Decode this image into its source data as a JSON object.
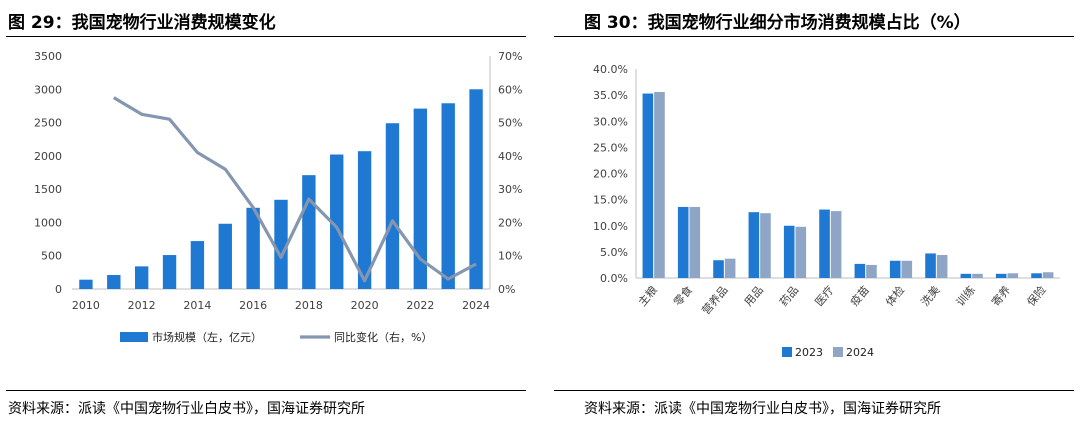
{
  "left": {
    "title": "图 29：我国宠物行业消费规模变化",
    "source": "资料来源：派读《中国宠物行业白皮书》，国海证券研究所"
  },
  "right": {
    "title": "图 30：我国宠物行业细分市场消费规模占比（%）",
    "source": "资料来源：派读《中国宠物行业白皮书》，国海证券研究所"
  },
  "chart_data": [
    {
      "type": "bar+line",
      "x": [
        2010,
        2011,
        2012,
        2013,
        2014,
        2015,
        2016,
        2017,
        2018,
        2019,
        2020,
        2021,
        2022,
        2023,
        2024
      ],
      "x_tick_labels": [
        "2010",
        "2012",
        "2014",
        "2016",
        "2018",
        "2020",
        "2022",
        "2024"
      ],
      "series": [
        {
          "name": "市场规模（左，亿元）",
          "type": "bar",
          "axis": "left",
          "color": "#1f78d1",
          "values": [
            140,
            210,
            340,
            510,
            720,
            980,
            1220,
            1340,
            1710,
            2020,
            2070,
            2490,
            2710,
            2790,
            3000
          ]
        },
        {
          "name": "同比变化（右，%）",
          "type": "line",
          "axis": "right",
          "color": "#8496b0",
          "values": [
            null,
            57.5,
            52.5,
            51.0,
            41.0,
            36.0,
            24.5,
            9.5,
            27.0,
            18.5,
            2.5,
            20.5,
            9.0,
            3.0,
            7.5
          ]
        }
      ],
      "ylim_left": [
        0,
        3500
      ],
      "yticks_left": [
        "0",
        "500",
        "1000",
        "1500",
        "2000",
        "2500",
        "3000",
        "3500"
      ],
      "ylim_right": [
        0,
        70
      ],
      "yticks_right": [
        "0%",
        "10%",
        "20%",
        "30%",
        "40%",
        "50%",
        "60%",
        "70%"
      ],
      "legend": "bottom"
    },
    {
      "type": "bar",
      "categories": [
        "主粮",
        "零食",
        "营养品",
        "用品",
        "药品",
        "医疗",
        "疫苗",
        "体检",
        "洗美",
        "训练",
        "寄养",
        "保险"
      ],
      "series": [
        {
          "name": "2023",
          "color": "#1f78d1",
          "values": [
            35.3,
            13.6,
            3.4,
            12.6,
            10.0,
            13.1,
            2.7,
            3.3,
            4.7,
            0.8,
            0.8,
            0.9
          ]
        },
        {
          "name": "2024",
          "color": "#8ea5c6",
          "values": [
            35.6,
            13.6,
            3.7,
            12.4,
            9.8,
            12.8,
            2.5,
            3.3,
            4.4,
            0.8,
            0.9,
            1.1
          ]
        }
      ],
      "ylim": [
        0,
        40
      ],
      "yticks": [
        "0.0%",
        "5.0%",
        "10.0%",
        "15.0%",
        "20.0%",
        "25.0%",
        "30.0%",
        "35.0%",
        "40.0%"
      ],
      "legend": "bottom"
    }
  ]
}
